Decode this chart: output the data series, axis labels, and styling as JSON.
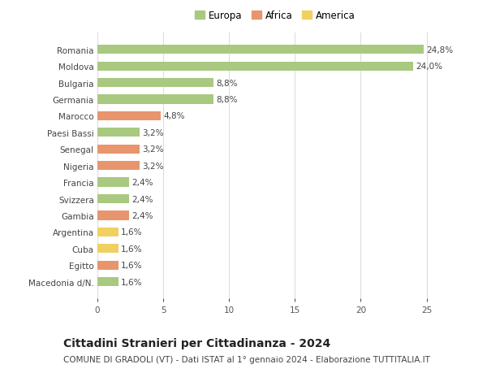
{
  "categories": [
    "Romania",
    "Moldova",
    "Bulgaria",
    "Germania",
    "Marocco",
    "Paesi Bassi",
    "Senegal",
    "Nigeria",
    "Francia",
    "Svizzera",
    "Gambia",
    "Argentina",
    "Cuba",
    "Egitto",
    "Macedonia d/N."
  ],
  "values": [
    24.8,
    24.0,
    8.8,
    8.8,
    4.8,
    3.2,
    3.2,
    3.2,
    2.4,
    2.4,
    2.4,
    1.6,
    1.6,
    1.6,
    1.6
  ],
  "continents": [
    "Europa",
    "Europa",
    "Europa",
    "Europa",
    "Africa",
    "Europa",
    "Africa",
    "Africa",
    "Europa",
    "Europa",
    "Africa",
    "America",
    "America",
    "Africa",
    "Europa"
  ],
  "labels": [
    "24,8%",
    "24,0%",
    "8,8%",
    "8,8%",
    "4,8%",
    "3,2%",
    "3,2%",
    "3,2%",
    "2,4%",
    "2,4%",
    "2,4%",
    "1,6%",
    "1,6%",
    "1,6%",
    "1,6%"
  ],
  "colors": {
    "Europa": "#a8c97f",
    "Africa": "#e8956d",
    "America": "#f0d060"
  },
  "legend_order": [
    "Europa",
    "Africa",
    "America"
  ],
  "xlim": [
    0,
    27
  ],
  "xticks": [
    0,
    5,
    10,
    15,
    20,
    25
  ],
  "title": "Cittadini Stranieri per Cittadinanza - 2024",
  "subtitle": "COMUNE DI GRADOLI (VT) - Dati ISTAT al 1° gennaio 2024 - Elaborazione TUTTITALIA.IT",
  "title_fontsize": 10,
  "subtitle_fontsize": 7.5,
  "label_fontsize": 7.5,
  "tick_fontsize": 7.5,
  "background_color": "#ffffff",
  "grid_color": "#dddddd"
}
